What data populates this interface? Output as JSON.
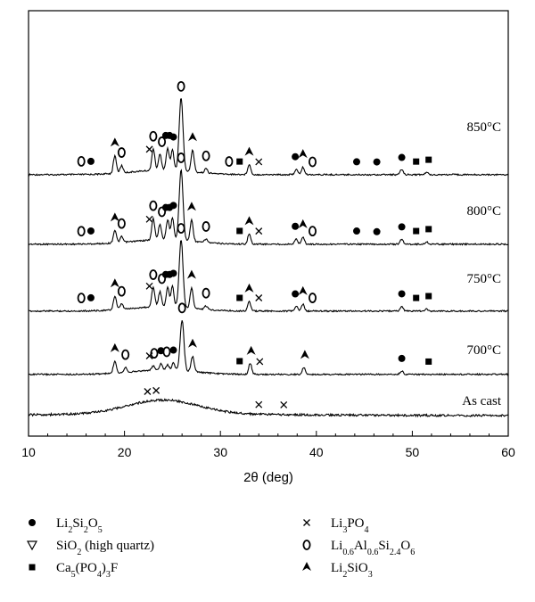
{
  "chart_data": {
    "type": "line",
    "xlabel": "2θ (deg)",
    "xlim": [
      10,
      60
    ],
    "x_ticks": [
      "10",
      "20",
      "30",
      "40",
      "50",
      "60"
    ],
    "y_ticks_shown": false,
    "grid": false,
    "legend_placement": "bottom",
    "series": [
      {
        "name": "850°C",
        "label": "850°C",
        "peaks": [
          {
            "x": 19.0,
            "h": 0.24
          },
          {
            "x": 19.7,
            "h": 0.1
          },
          {
            "x": 23.0,
            "h": 0.3
          },
          {
            "x": 23.7,
            "h": 0.22
          },
          {
            "x": 24.5,
            "h": 0.3
          },
          {
            "x": 25.0,
            "h": 0.28
          },
          {
            "x": 25.9,
            "h": 1.0
          },
          {
            "x": 27.1,
            "h": 0.3
          },
          {
            "x": 28.5,
            "h": 0.06
          },
          {
            "x": 33.0,
            "h": 0.14
          },
          {
            "x": 37.9,
            "h": 0.07
          },
          {
            "x": 38.6,
            "h": 0.1
          },
          {
            "x": 48.9,
            "h": 0.07
          },
          {
            "x": 51.5,
            "h": 0.03
          }
        ],
        "markers": [
          {
            "x": 15.5,
            "phase": "O"
          },
          {
            "x": 16.5,
            "phase": "circle"
          },
          {
            "x": 19.0,
            "phase": "tri"
          },
          {
            "x": 19.7,
            "phase": "O"
          },
          {
            "x": 22.6,
            "phase": "cross"
          },
          {
            "x": 23.0,
            "phase": "O"
          },
          {
            "x": 23.9,
            "phase": "O"
          },
          {
            "x": 24.3,
            "phase": "circle"
          },
          {
            "x": 24.7,
            "phase": "circle"
          },
          {
            "x": 25.1,
            "phase": "circle"
          },
          {
            "x": 25.9,
            "phase": "O"
          },
          {
            "x": 27.1,
            "phase": "tri"
          },
          {
            "x": 28.5,
            "phase": "O"
          },
          {
            "x": 30.9,
            "phase": "O"
          },
          {
            "x": 32.0,
            "phase": "square"
          },
          {
            "x": 33.0,
            "phase": "tri"
          },
          {
            "x": 34.0,
            "phase": "cross"
          },
          {
            "x": 37.8,
            "phase": "circle"
          },
          {
            "x": 38.6,
            "phase": "tri"
          },
          {
            "x": 39.6,
            "phase": "O"
          },
          {
            "x": 44.2,
            "phase": "circle"
          },
          {
            "x": 46.3,
            "phase": "circle"
          },
          {
            "x": 48.9,
            "phase": "circle"
          },
          {
            "x": 50.4,
            "phase": "square"
          },
          {
            "x": 51.7,
            "phase": "square"
          }
        ]
      },
      {
        "name": "800°C",
        "label": "800°C",
        "peaks": [
          {
            "x": 19.0,
            "h": 0.18
          },
          {
            "x": 19.7,
            "h": 0.08
          },
          {
            "x": 23.0,
            "h": 0.3
          },
          {
            "x": 23.7,
            "h": 0.22
          },
          {
            "x": 24.5,
            "h": 0.28
          },
          {
            "x": 25.0,
            "h": 0.3
          },
          {
            "x": 25.9,
            "h": 1.0
          },
          {
            "x": 27.0,
            "h": 0.3
          },
          {
            "x": 28.5,
            "h": 0.05
          },
          {
            "x": 33.0,
            "h": 0.14
          },
          {
            "x": 37.9,
            "h": 0.07
          },
          {
            "x": 38.6,
            "h": 0.1
          },
          {
            "x": 48.9,
            "h": 0.07
          },
          {
            "x": 51.5,
            "h": 0.03
          }
        ],
        "markers": [
          {
            "x": 15.5,
            "phase": "O"
          },
          {
            "x": 16.5,
            "phase": "circle"
          },
          {
            "x": 19.0,
            "phase": "tri"
          },
          {
            "x": 19.7,
            "phase": "O"
          },
          {
            "x": 22.6,
            "phase": "cross"
          },
          {
            "x": 23.0,
            "phase": "O"
          },
          {
            "x": 23.9,
            "phase": "O"
          },
          {
            "x": 24.3,
            "phase": "circle"
          },
          {
            "x": 24.7,
            "phase": "circle"
          },
          {
            "x": 25.1,
            "phase": "circle"
          },
          {
            "x": 25.9,
            "phase": "O"
          },
          {
            "x": 27.0,
            "phase": "tri"
          },
          {
            "x": 28.5,
            "phase": "O"
          },
          {
            "x": 32.0,
            "phase": "square"
          },
          {
            "x": 33.0,
            "phase": "tri"
          },
          {
            "x": 34.0,
            "phase": "cross"
          },
          {
            "x": 37.8,
            "phase": "circle"
          },
          {
            "x": 38.6,
            "phase": "tri"
          },
          {
            "x": 39.6,
            "phase": "O"
          },
          {
            "x": 44.2,
            "phase": "circle"
          },
          {
            "x": 46.3,
            "phase": "circle"
          },
          {
            "x": 48.9,
            "phase": "circle"
          },
          {
            "x": 50.4,
            "phase": "square"
          },
          {
            "x": 51.7,
            "phase": "square"
          }
        ]
      },
      {
        "name": "750°C",
        "label": "750°C",
        "peaks": [
          {
            "x": 19.0,
            "h": 0.2
          },
          {
            "x": 19.7,
            "h": 0.08
          },
          {
            "x": 23.0,
            "h": 0.3
          },
          {
            "x": 23.7,
            "h": 0.22
          },
          {
            "x": 24.5,
            "h": 0.28
          },
          {
            "x": 25.0,
            "h": 0.3
          },
          {
            "x": 25.9,
            "h": 1.0
          },
          {
            "x": 27.0,
            "h": 0.3
          },
          {
            "x": 28.5,
            "h": 0.05
          },
          {
            "x": 33.0,
            "h": 0.14
          },
          {
            "x": 37.9,
            "h": 0.07
          },
          {
            "x": 38.6,
            "h": 0.1
          },
          {
            "x": 48.9,
            "h": 0.07
          },
          {
            "x": 51.5,
            "h": 0.03
          }
        ],
        "markers": [
          {
            "x": 15.5,
            "phase": "O"
          },
          {
            "x": 16.5,
            "phase": "circle"
          },
          {
            "x": 19.0,
            "phase": "tri"
          },
          {
            "x": 19.7,
            "phase": "O"
          },
          {
            "x": 22.6,
            "phase": "cross"
          },
          {
            "x": 23.0,
            "phase": "O"
          },
          {
            "x": 23.9,
            "phase": "O"
          },
          {
            "x": 24.3,
            "phase": "circle"
          },
          {
            "x": 24.7,
            "phase": "circle"
          },
          {
            "x": 25.1,
            "phase": "circle"
          },
          {
            "x": 25.9,
            "phase": "O"
          },
          {
            "x": 27.0,
            "phase": "tri"
          },
          {
            "x": 28.5,
            "phase": "O"
          },
          {
            "x": 32.0,
            "phase": "square"
          },
          {
            "x": 33.0,
            "phase": "tri"
          },
          {
            "x": 34.0,
            "phase": "cross"
          },
          {
            "x": 37.8,
            "phase": "circle"
          },
          {
            "x": 38.6,
            "phase": "tri"
          },
          {
            "x": 39.6,
            "phase": "O"
          },
          {
            "x": 48.9,
            "phase": "circle"
          },
          {
            "x": 50.4,
            "phase": "square"
          },
          {
            "x": 51.7,
            "phase": "square"
          }
        ]
      },
      {
        "name": "700°C",
        "label": "700°C",
        "peaks": [
          {
            "x": 19.0,
            "h": 0.24
          },
          {
            "x": 20.1,
            "h": 0.1
          },
          {
            "x": 23.0,
            "h": 0.08
          },
          {
            "x": 23.8,
            "h": 0.12
          },
          {
            "x": 24.5,
            "h": 0.1
          },
          {
            "x": 25.1,
            "h": 0.14
          },
          {
            "x": 26.0,
            "h": 1.0
          },
          {
            "x": 27.1,
            "h": 0.3
          },
          {
            "x": 33.1,
            "h": 0.22
          },
          {
            "x": 38.7,
            "h": 0.14
          },
          {
            "x": 48.9,
            "h": 0.07
          }
        ],
        "markers": [
          {
            "x": 19.0,
            "phase": "tri"
          },
          {
            "x": 20.1,
            "phase": "O"
          },
          {
            "x": 22.6,
            "phase": "cross"
          },
          {
            "x": 23.1,
            "phase": "O"
          },
          {
            "x": 23.8,
            "phase": "circle"
          },
          {
            "x": 24.4,
            "phase": "O"
          },
          {
            "x": 25.1,
            "phase": "circle"
          },
          {
            "x": 26.0,
            "phase": "O"
          },
          {
            "x": 27.1,
            "phase": "tri"
          },
          {
            "x": 32.0,
            "phase": "square"
          },
          {
            "x": 33.2,
            "phase": "tri"
          },
          {
            "x": 34.1,
            "phase": "cross"
          },
          {
            "x": 38.8,
            "phase": "tri"
          },
          {
            "x": 48.9,
            "phase": "circle"
          },
          {
            "x": 51.7,
            "phase": "square"
          }
        ]
      },
      {
        "name": "As cast",
        "label": "As cast",
        "amorphous": true,
        "markers": [
          {
            "x": 22.4,
            "phase": "cross"
          },
          {
            "x": 23.3,
            "phase": "cross"
          },
          {
            "x": 34.0,
            "phase": "cross"
          },
          {
            "x": 36.6,
            "phase": "cross"
          }
        ]
      }
    ],
    "legend": [
      {
        "marker": "circle",
        "formula": [
          {
            "t": "Li"
          },
          {
            "t": "2",
            "sub": true
          },
          {
            "t": "Si"
          },
          {
            "t": "2",
            "sub": true
          },
          {
            "t": "O"
          },
          {
            "t": "5",
            "sub": true
          }
        ]
      },
      {
        "marker": "triangle-down-open",
        "formula": [
          {
            "t": "SiO"
          },
          {
            "t": "2",
            "sub": true
          },
          {
            "t": " (high quartz)"
          }
        ]
      },
      {
        "marker": "square",
        "formula": [
          {
            "t": "Ca"
          },
          {
            "t": "5",
            "sub": true
          },
          {
            "t": "(PO"
          },
          {
            "t": "4",
            "sub": true
          },
          {
            "t": ")"
          },
          {
            "t": "3",
            "sub": true
          },
          {
            "t": "F"
          }
        ]
      },
      {
        "marker": "cross",
        "formula": [
          {
            "t": "Li"
          },
          {
            "t": "3",
            "sub": true
          },
          {
            "t": "PO"
          },
          {
            "t": "4",
            "sub": true
          }
        ]
      },
      {
        "marker": "O",
        "formula": [
          {
            "t": "Li"
          },
          {
            "t": "0.6",
            "sub": true
          },
          {
            "t": "Al"
          },
          {
            "t": "0.6",
            "sub": true
          },
          {
            "t": "Si"
          },
          {
            "t": "2.4",
            "sub": true
          },
          {
            "t": "O"
          },
          {
            "t": "6",
            "sub": true
          }
        ]
      },
      {
        "marker": "tri",
        "formula": [
          {
            "t": "Li"
          },
          {
            "t": "2",
            "sub": true
          },
          {
            "t": "SiO"
          },
          {
            "t": "3",
            "sub": true
          }
        ]
      }
    ]
  }
}
